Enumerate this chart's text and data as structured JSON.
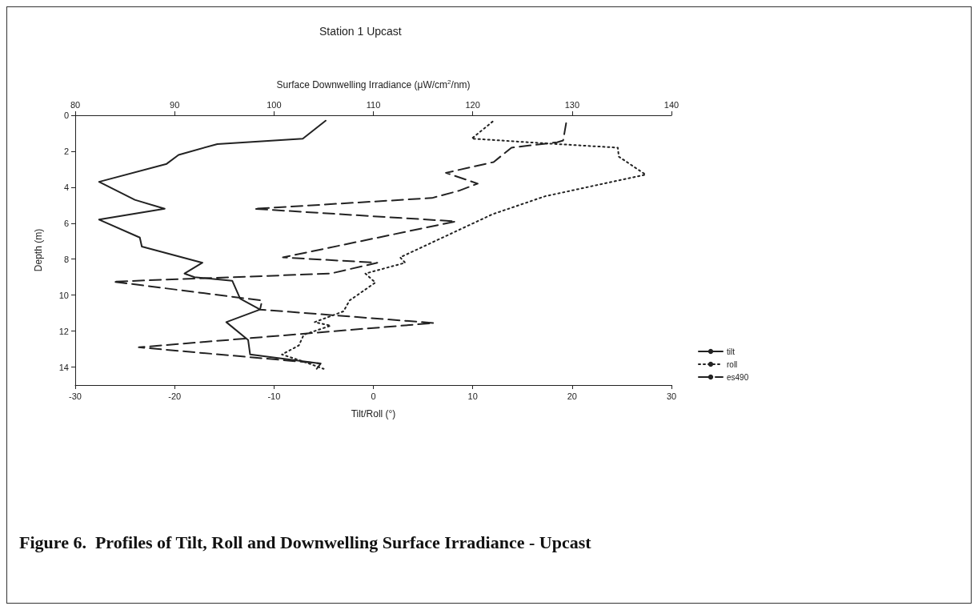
{
  "chart_data": {
    "type": "line",
    "title": "Station 1 Upcast",
    "xlabel": "Tilt/Roll (°)",
    "x2label": "Surface Downwelling Irradiance (μW/cm$^{2}$/nm)",
    "ylabel": "Depth (m)",
    "annotations": [
      "Figure 6.  Profiles of Tilt, Roll and Downwelling Surface Irradiance - Upcast"
    ],
    "xlim": [
      -30,
      30
    ],
    "xticks": [
      -30,
      -20,
      -10,
      0,
      10,
      20,
      30
    ],
    "x2lim": [
      80,
      140
    ],
    "x2ticks": [
      80,
      90,
      100,
      110,
      120,
      130,
      140
    ],
    "ylim": [
      15,
      0
    ],
    "yticks": [
      0,
      2,
      4,
      6,
      8,
      10,
      12,
      14
    ],
    "grid": false,
    "legend": "bottom right",
    "marker": "none",
    "series": [
      {
        "name": "tilt",
        "color": "#222222",
        "line_style": "solid",
        "x": [
          -4.8,
          -7.1,
          -15.7,
          -19.6,
          -20.8,
          -27.6,
          -24,
          -21,
          -27.6,
          -23.5,
          -23.3,
          -17.2,
          -19,
          -18,
          -14.2,
          -13.4,
          -11.4,
          -14.8,
          -12.6,
          -12.4,
          -5.4
        ],
        "values": [
          0.3,
          1.3,
          1.6,
          2.2,
          2.7,
          3.7,
          4.7,
          5.2,
          5.8,
          6.8,
          7.3,
          8.2,
          8.8,
          9.0,
          9.2,
          10.2,
          10.8,
          11.5,
          12.5,
          13.3,
          13.8
        ]
      },
      {
        "name": "roll",
        "color": "#222222",
        "line_style": "dotted",
        "x": [
          12,
          9.9,
          18.5,
          24.6,
          24.7,
          27.4,
          17.3,
          12,
          2.7,
          3.2,
          -0.8,
          0.2,
          -2.4,
          -3,
          -5.9,
          -4.3,
          -7,
          -7.5,
          -9.2,
          -7,
          -5
        ],
        "values": [
          0.35,
          1.3,
          1.6,
          1.8,
          2.3,
          3.3,
          4.5,
          5.5,
          7.9,
          8.2,
          8.8,
          9.3,
          10.3,
          10.9,
          11.5,
          11.7,
          12.2,
          12.8,
          13.3,
          13.7,
          14.1
        ]
      },
      {
        "name": "es490",
        "color": "#222222",
        "line_style": "dashed",
        "axis": "x2",
        "x": [
          129.4,
          129.1,
          128.5,
          123.9,
          122.1,
          117.3,
          120.5,
          118.6,
          115.9,
          98,
          118.3,
          100.9,
          110.4,
          105.7,
          83.8,
          98.8,
          98.6,
          116.1,
          86.4,
          104.7,
          104.3
        ],
        "values": [
          0.44,
          1.4,
          1.5,
          1.8,
          2.6,
          3.2,
          3.8,
          4.2,
          4.6,
          5.2,
          5.9,
          7.9,
          8.2,
          8.8,
          9.25,
          10.3,
          10.8,
          11.55,
          12.9,
          13.8,
          14.1
        ]
      }
    ]
  }
}
